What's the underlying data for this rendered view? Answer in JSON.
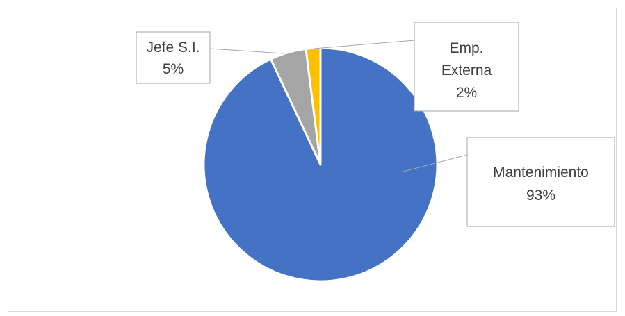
{
  "chart_data": {
    "type": "pie",
    "title": "",
    "slices": [
      {
        "label_line1": "Mantenimiento",
        "label_line2": "",
        "percent_label": "93%",
        "value": 93,
        "color": "#4472C4"
      },
      {
        "label_line1": "Jefe S.I.",
        "label_line2": "",
        "percent_label": "5%",
        "value": 5,
        "color": "#A5A5A5"
      },
      {
        "label_line1": "Emp.",
        "label_line2": "Externa",
        "percent_label": "2%",
        "value": 2,
        "color": "#FFC000"
      }
    ],
    "start_angle_deg": 0,
    "direction": "clockwise",
    "legend": "none",
    "data_labels": "callouts"
  }
}
